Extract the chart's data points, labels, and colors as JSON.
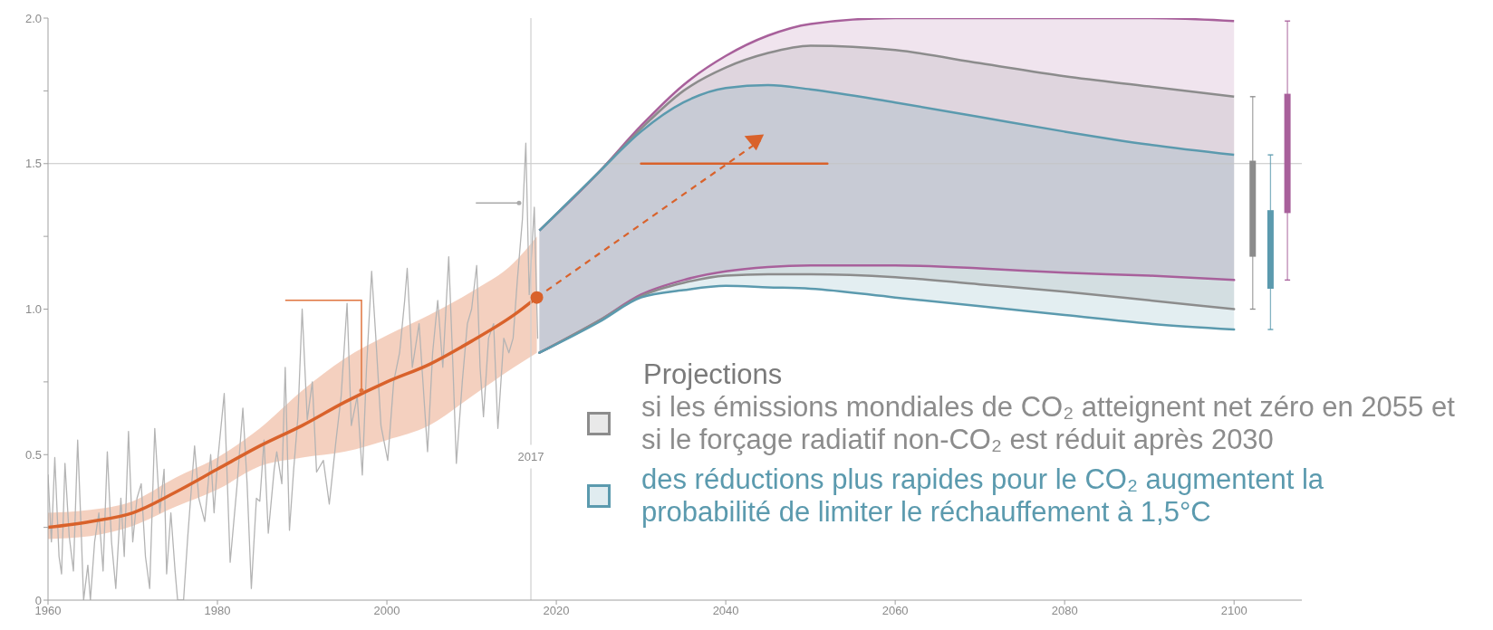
{
  "chart_data": {
    "type": "line",
    "xlim": [
      1960,
      2108
    ],
    "ylim": [
      0,
      2
    ],
    "xticks": [
      1960,
      1980,
      2000,
      2020,
      2040,
      2060,
      2080,
      2100
    ],
    "yticks": [
      0,
      {
        "value": 0.25,
        "label": null
      },
      0.5,
      {
        "value": 0.75,
        "label": null
      },
      {
        "value": 1,
        "label": "1.0"
      },
      {
        "value": 1.25,
        "label": null
      },
      1.5,
      {
        "value": 1.75,
        "label": null
      },
      {
        "value": 2,
        "label": "2.0"
      }
    ],
    "ref_lines": [
      {
        "axis": "y",
        "value": 1.5,
        "color": "#c4c4c4"
      },
      {
        "axis": "x",
        "value": 2017,
        "label": "2017",
        "color": "#cfcfcf"
      }
    ],
    "legend": "bottom right",
    "legend_title": "Projections",
    "series": [
      {
        "color": "#b4b4b4",
        "x": [
          1960.0,
          1960.4,
          1960.8,
          1961.3,
          1961.6,
          1962.0,
          1962.5,
          1963.0,
          1963.5,
          1963.9,
          1964.2,
          1964.7,
          1965.0,
          1965.5,
          1966.0,
          1966.5,
          1967.0,
          1967.5,
          1968.0,
          1968.6,
          1969.0,
          1969.5,
          1970.0,
          1970.5,
          1971.0,
          1971.5,
          1972.0,
          1972.6,
          1973.2,
          1973.7,
          1974.0,
          1974.5,
          1975.0,
          1975.3,
          1976.0,
          1976.5,
          1977.3,
          1977.8,
          1978.5,
          1979.2,
          1979.6,
          1980.0,
          1980.8,
          1981.5,
          1982.3,
          1983.0,
          1983.5,
          1984.0,
          1984.6,
          1985.0,
          1985.5,
          1986.0,
          1986.7,
          1987.0,
          1987.6,
          1988.0,
          1988.5,
          1989.0,
          1989.5,
          1990.0,
          1990.6,
          1991.2,
          1991.7,
          1992.5,
          1993.2,
          1994.0,
          1994.6,
          1995.3,
          1995.8,
          1996.5,
          1997.1,
          1997.6,
          1998.2,
          1998.7,
          1999.3,
          2000.1,
          2000.8,
          2001.5,
          2002.1,
          2002.4,
          2003.0,
          2003.8,
          2004.8,
          2005.4,
          2006.0,
          2006.6,
          2007.3,
          2007.8,
          2008.2,
          2008.9,
          2009.5,
          2010.0,
          2010.6,
          2011.0,
          2011.4,
          2012.0,
          2012.6,
          2013.1,
          2013.8,
          2014.4,
          2014.9,
          2015.4,
          2016.0,
          2016.4,
          2016.8,
          2017.4,
          2017.8
        ],
        "values": [
          0.43,
          0.2,
          0.49,
          0.15,
          0.09,
          0.47,
          0.22,
          0.1,
          0.55,
          0.25,
          0,
          0.12,
          0,
          0.2,
          0.3,
          0.1,
          0.51,
          0.2,
          0.04,
          0.35,
          0.15,
          0.58,
          0.2,
          0.35,
          0.4,
          0.15,
          0.04,
          0.59,
          0.3,
          0.45,
          0.09,
          0.3,
          0.1,
          0,
          0,
          0.22,
          0.53,
          0.35,
          0.27,
          0.5,
          0.3,
          0.47,
          0.71,
          0.13,
          0.39,
          0.66,
          0.4,
          0.04,
          0.35,
          0.34,
          0.55,
          0.23,
          0.45,
          0.51,
          0.4,
          0.8,
          0.24,
          0.45,
          0.63,
          1.0,
          0.62,
          0.75,
          0.44,
          0.48,
          0.33,
          0.55,
          0.7,
          1.02,
          0.6,
          0.7,
          0.43,
          0.8,
          1.13,
          0.9,
          0.6,
          0.48,
          0.75,
          0.85,
          1.03,
          1.14,
          0.8,
          0.95,
          0.51,
          0.85,
          1.03,
          0.8,
          1.18,
          0.8,
          0.47,
          0.75,
          0.95,
          1.0,
          1.15,
          0.8,
          0.63,
          0.9,
          0.95,
          0.59,
          0.9,
          0.85,
          0.9,
          1.1,
          1.31,
          1.57,
          1.05,
          1.35,
          0.9
        ]
      },
      {
        "color": "#d9622b",
        "x": [
          1960,
          1965,
          1970,
          1975,
          1980,
          1985,
          1990,
          1995,
          2000,
          2005,
          2010,
          2015,
          2017.7
        ],
        "values": [
          0.25,
          0.27,
          0.3,
          0.37,
          0.45,
          0.53,
          0.6,
          0.68,
          0.75,
          0.81,
          0.89,
          0.98,
          1.04
        ],
        "lower": [
          0.21,
          0.22,
          0.255,
          0.32,
          0.38,
          0.46,
          0.49,
          0.51,
          0.55,
          0.6,
          0.7,
          0.8,
          0.85
        ],
        "upper": [
          0.3,
          0.31,
          0.34,
          0.42,
          0.49,
          0.59,
          0.72,
          0.83,
          0.91,
          0.98,
          1.06,
          1.16,
          1.25
        ]
      },
      {
        "type": "area",
        "color": "#a8609b",
        "x": [
          2018,
          2025,
          2030,
          2035,
          2040,
          2045,
          2050,
          2060,
          2070,
          2080,
          2090,
          2100
        ],
        "values": [
          1.27,
          1.47,
          1.63,
          1.77,
          1.87,
          1.94,
          1.98,
          2.0,
          2.0,
          2.0,
          2.0,
          1.99
        ]
      },
      {
        "type": "line",
        "color": "#a8609b",
        "x": [
          2018,
          2025,
          2030,
          2035,
          2040,
          2045,
          2050,
          2060,
          2070,
          2080,
          2090,
          2100
        ],
        "values": [
          0.85,
          0.96,
          1.05,
          1.1,
          1.13,
          1.145,
          1.15,
          1.15,
          1.14,
          1.125,
          1.115,
          1.1
        ]
      },
      {
        "type": "area",
        "name": "si les émissions mondiales de CO₂ atteignent net zéro en 2055 et si le forçage radiatif non-CO₂ est réduit après 2030",
        "color": "#8c8c8c",
        "x": [
          2018,
          2025,
          2030,
          2035,
          2040,
          2045,
          2050,
          2060,
          2070,
          2080,
          2090,
          2100
        ],
        "values": [
          1.27,
          1.47,
          1.62,
          1.75,
          1.83,
          1.88,
          1.905,
          1.89,
          1.845,
          1.8,
          1.765,
          1.73
        ]
      },
      {
        "type": "line",
        "color": "#8c8c8c",
        "x": [
          2018,
          2025,
          2030,
          2035,
          2040,
          2045,
          2050,
          2060,
          2070,
          2080,
          2090,
          2100
        ],
        "values": [
          0.85,
          0.96,
          1.045,
          1.09,
          1.115,
          1.12,
          1.12,
          1.11,
          1.085,
          1.06,
          1.03,
          1.0
        ]
      },
      {
        "type": "area",
        "name": "des réductions plus rapides pour le CO₂ augmentent la probabilité de limiter le réchauffement à 1,5°C",
        "color": "#5b9aae",
        "x": [
          2018,
          2025,
          2030,
          2035,
          2040,
          2045,
          2050,
          2060,
          2070,
          2080,
          2090,
          2100
        ],
        "values": [
          1.27,
          1.47,
          1.61,
          1.71,
          1.76,
          1.77,
          1.755,
          1.71,
          1.66,
          1.61,
          1.565,
          1.53
        ]
      },
      {
        "type": "line",
        "color": "#5b9aae",
        "x": [
          2018,
          2025,
          2030,
          2035,
          2040,
          2045,
          2050,
          2060,
          2070,
          2080,
          2090,
          2100
        ],
        "values": [
          0.85,
          0.955,
          1.04,
          1.065,
          1.08,
          1.075,
          1.07,
          1.04,
          1.01,
          0.98,
          0.95,
          0.93
        ]
      },
      {
        "type": "line",
        "color": "#d9622b",
        "x": [
          2030,
          2052
        ],
        "values": [
          1.5,
          1.5
        ]
      },
      {
        "type": "scatter",
        "color": "#d9622b",
        "marker": "circle",
        "x": [
          2017.7
        ],
        "values": [
          1.04
        ]
      },
      {
        "type": "box",
        "color": "#8c8c8c",
        "x": [
          2102.2
        ],
        "boxes": [
          {
            "low": 1.0,
            "q1": 1.18,
            "q3": 1.51,
            "high": 1.73
          }
        ]
      },
      {
        "type": "box",
        "color": "#5b9aae",
        "x": [
          2104.3
        ],
        "boxes": [
          {
            "low": 0.93,
            "q1": 1.07,
            "q3": 1.34,
            "high": 1.53
          }
        ]
      },
      {
        "type": "box",
        "color": "#a8609b",
        "x": [
          2106.3
        ],
        "boxes": [
          {
            "low": 1.1,
            "q1": 1.33,
            "q3": 1.74,
            "high": 1.99
          }
        ]
      }
    ]
  }
}
